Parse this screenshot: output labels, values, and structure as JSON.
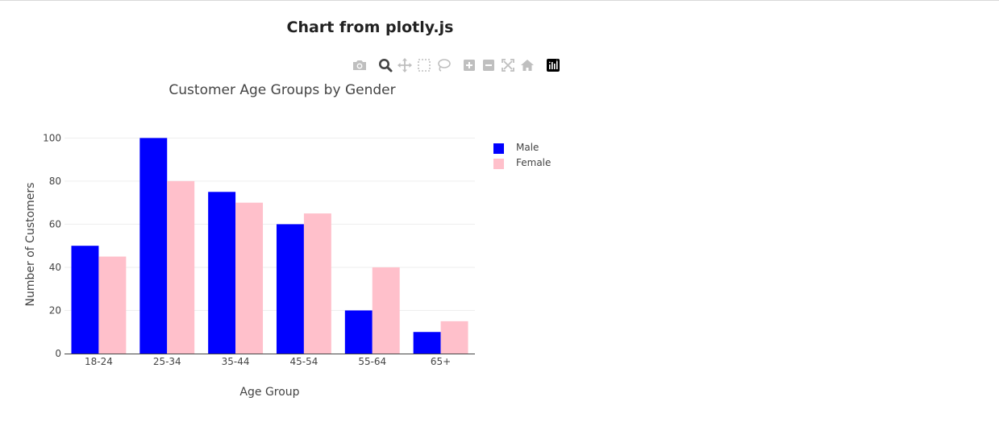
{
  "page": {
    "title": "Chart from plotly.js"
  },
  "toolbar": {
    "icons": [
      "camera-icon",
      "zoom-icon",
      "pan-icon",
      "box-select-icon",
      "lasso-select-icon",
      "zoom-in-icon",
      "zoom-out-icon",
      "autoscale-icon",
      "reset-axes-icon",
      "plotly-logo-icon"
    ],
    "active": "zoom-icon",
    "icon_color": "#bfbfbf",
    "active_color": "#444444"
  },
  "chart_data": {
    "type": "bar",
    "title": "Customer Age Groups by Gender",
    "xlabel": "Age Group",
    "ylabel": "Number of Customers",
    "categories": [
      "18-24",
      "25-34",
      "35-44",
      "45-54",
      "55-64",
      "65+"
    ],
    "series": [
      {
        "name": "Male",
        "values": [
          50,
          100,
          75,
          60,
          20,
          10
        ],
        "color": "#0000ff"
      },
      {
        "name": "Female",
        "values": [
          45,
          80,
          70,
          65,
          40,
          15
        ],
        "color": "#ffc0cb"
      }
    ],
    "ylim": [
      0,
      105
    ],
    "yticks": [
      0,
      20,
      40,
      60,
      80,
      100
    ],
    "grid": true,
    "legend": "top-right, outside plot",
    "barmode": "group"
  }
}
